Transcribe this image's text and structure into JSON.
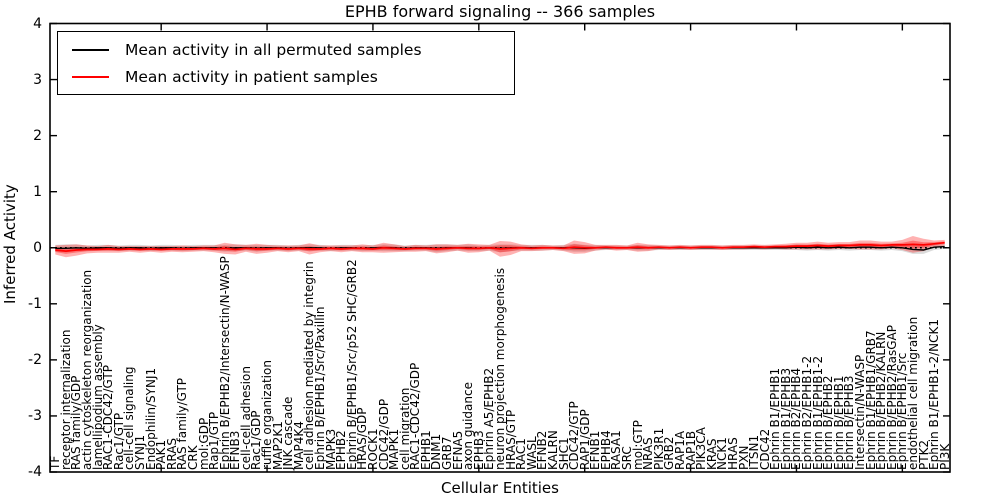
{
  "figure": {
    "title": "EPHB forward signaling -- 366 samples",
    "xlabel": "Cellular Entities",
    "ylabel": "Inferred Activity"
  },
  "legend": {
    "position": "upper left",
    "entries": [
      {
        "label": "Mean activity in all permuted samples",
        "color": "#000000"
      },
      {
        "label": "Mean activity in patient samples",
        "color": "#ff0000"
      }
    ]
  },
  "chart_data": {
    "type": "line",
    "title": "EPHB forward signaling -- 366 samples",
    "xlabel": "Cellular Entities",
    "ylabel": "Inferred Activity",
    "ylim": [
      -4,
      4
    ],
    "yticks": [
      -4,
      -3,
      -2,
      -1,
      0,
      1,
      2,
      3,
      4
    ],
    "ytick_labels": [
      "-4",
      "-3",
      "-2",
      "-1",
      "0",
      "1",
      "2",
      "3",
      "4"
    ],
    "grid": false,
    "legend_position": "upper left",
    "zero_line": {
      "y": 0,
      "style": "dotted",
      "color": "#000000"
    },
    "categories": [
      "TF",
      "receptor internalization",
      "RAS family/GDP",
      "actin cytoskeleton reorganization",
      "lamellipodium assembly",
      "RAC1-CDC42/GTP",
      "Rac1/GTP",
      "cell-cell signaling",
      "SYNJ1",
      "Endophilin/SYNJ1",
      "PAK1",
      "RRAS",
      "RAS family/GTP",
      "CRK",
      "mol:GDP",
      "Rap1/GTP",
      "Ephrin B/EPHB2/Intersectin/N-WASP",
      "EFNB3",
      "cell-cell adhesion",
      "Rac1/GDP",
      "ruffle organization",
      "MAP2K1",
      "JNK cascade",
      "MAP4K4",
      "cell adhesion mediated by integrin",
      "Ephrin B/EPHB1/Src/Paxillin",
      "MAPK3",
      "EPHB2",
      "Ephrin B/EPHB1/Src/p52 SHC/GRB2",
      "HRAS/GDP",
      "ROCK1",
      "CDC42/GDP",
      "MAPK1",
      "cell migration",
      "RAC1-CDC42/GDP",
      "EPHB1",
      "DNM1",
      "GRB7",
      "EFNA5",
      "axon guidance",
      "EPHB3",
      "Ephrin A5/EPHB2",
      "neuron projection morphogenesis",
      "HRAS/GTP",
      "RAC1",
      "WASL",
      "EFNB2",
      "KALRN",
      "SHC1",
      "CDC42/GTP",
      "RAP1/GDP",
      "EFNB1",
      "EPHB4",
      "RASA1",
      "SRC",
      "mol:GTP",
      "NRAS",
      "PIK3R1",
      "GRB2",
      "RAP1A",
      "RAP1B",
      "PIK3CA",
      "KRAS",
      "NCK1",
      "HRAS",
      "PXN",
      "ITSN1",
      "CDC42",
      "Ephrin B1/EPHB1",
      "Ephrin B1/EPHB3",
      "Ephrin B2/EPHB4",
      "Ephrin B2/EPHB1-2",
      "Ephrin B1/EPHB1-2",
      "Ephrin B/EPHB2",
      "Ephrin B/EPHB1",
      "Ephrin B/EPHB3",
      "Intersectin/N-WASP",
      "Ephrin B1/EPHB1/GRB7",
      "Ephrin B/EPHB2/KALRN",
      "Ephrin B/EPHB2/RasGAP",
      "Ephrin B/EPHB1/Src",
      "endothelial cell migration",
      "PTK2",
      "Ephrin B1/EPHB1-2/NCK1",
      "PI3K"
    ],
    "series": [
      {
        "name": "Mean activity in all permuted samples",
        "color": "#000000",
        "band_color": "#999999",
        "band_opacity": 0.35,
        "values": [
          -0.01,
          -0.01,
          0,
          -0.01,
          0,
          0,
          -0.01,
          0,
          0,
          -0.01,
          0,
          0,
          -0.01,
          0,
          0,
          0,
          -0.01,
          0,
          0,
          -0.01,
          0,
          0,
          -0.01,
          0,
          0,
          0,
          -0.01,
          0,
          0,
          -0.01,
          0,
          0,
          0,
          -0.01,
          0,
          0,
          -0.01,
          0,
          0,
          0,
          -0.01,
          0,
          -0.01,
          0,
          0,
          0,
          0,
          0,
          0,
          0,
          -0.01,
          0,
          0,
          0,
          0,
          0,
          0,
          0,
          0,
          0,
          0,
          0,
          0,
          0,
          0,
          0,
          0,
          0,
          0,
          0,
          0.01,
          0,
          0.01,
          0,
          0.01,
          0,
          0.01,
          0.01,
          0,
          0.01,
          0,
          -0.03,
          -0.04,
          0.01,
          0.02
        ],
        "band_half": [
          0.06,
          0.07,
          0.06,
          0.05,
          0.05,
          0.05,
          0.05,
          0.05,
          0.05,
          0.05,
          0.05,
          0.05,
          0.05,
          0.05,
          0.05,
          0.05,
          0.06,
          0.06,
          0.05,
          0.06,
          0.05,
          0.05,
          0.05,
          0.05,
          0.06,
          0.05,
          0.05,
          0.05,
          0.05,
          0.05,
          0.05,
          0.06,
          0.06,
          0.05,
          0.05,
          0.05,
          0.07,
          0.06,
          0.05,
          0.06,
          0.05,
          0.05,
          0.07,
          0.06,
          0.05,
          0.05,
          0.05,
          0.04,
          0.05,
          0.07,
          0.06,
          0.05,
          0.04,
          0.04,
          0.04,
          0.05,
          0.05,
          0.04,
          0.04,
          0.04,
          0.04,
          0.04,
          0.04,
          0.04,
          0.04,
          0.04,
          0.04,
          0.04,
          0.04,
          0.04,
          0.05,
          0.05,
          0.05,
          0.05,
          0.05,
          0.05,
          0.05,
          0.05,
          0.05,
          0.05,
          0.06,
          0.08,
          0.07,
          0.05,
          0.04
        ]
      },
      {
        "name": "Mean activity in patient samples",
        "color": "#ff0000",
        "band_color": "#ff0000",
        "band_opacity": 0.3,
        "values": [
          -0.04,
          -0.06,
          -0.04,
          -0.03,
          -0.03,
          -0.02,
          -0.03,
          -0.02,
          -0.03,
          -0.02,
          -0.03,
          -0.02,
          -0.02,
          -0.02,
          -0.01,
          -0.02,
          -0.01,
          -0.03,
          -0.01,
          -0.02,
          -0.02,
          -0.01,
          -0.02,
          -0.01,
          -0.02,
          -0.02,
          -0.01,
          -0.02,
          -0.01,
          -0.01,
          -0.02,
          0,
          -0.01,
          -0.02,
          -0.01,
          -0.01,
          -0.02,
          -0.01,
          0,
          -0.01,
          -0.01,
          0,
          -0.02,
          -0.01,
          0,
          -0.01,
          0,
          0,
          -0.01,
          0.01,
          0,
          0,
          0.01,
          0,
          0,
          0.01,
          0,
          0.01,
          0,
          0.01,
          0,
          0.01,
          0.01,
          0,
          0.01,
          0.01,
          0.02,
          0.01,
          0.02,
          0.02,
          0.03,
          0.03,
          0.04,
          0.03,
          0.04,
          0.04,
          0.05,
          0.05,
          0.04,
          0.05,
          0.05,
          0.06,
          0.05,
          0.07,
          0.09
        ],
        "band_half": [
          0.08,
          0.11,
          0.1,
          0.07,
          0.06,
          0.07,
          0.06,
          0.05,
          0.06,
          0.05,
          0.06,
          0.05,
          0.06,
          0.05,
          0.05,
          0.06,
          0.1,
          0.09,
          0.06,
          0.09,
          0.07,
          0.05,
          0.06,
          0.05,
          0.1,
          0.06,
          0.05,
          0.06,
          0.05,
          0.07,
          0.06,
          0.09,
          0.07,
          0.05,
          0.06,
          0.05,
          0.08,
          0.07,
          0.05,
          0.08,
          0.07,
          0.05,
          0.14,
          0.12,
          0.06,
          0.05,
          0.05,
          0.04,
          0.05,
          0.12,
          0.1,
          0.05,
          0.04,
          0.05,
          0.04,
          0.08,
          0.06,
          0.04,
          0.04,
          0.04,
          0.04,
          0.04,
          0.04,
          0.04,
          0.04,
          0.04,
          0.04,
          0.04,
          0.04,
          0.05,
          0.06,
          0.06,
          0.07,
          0.06,
          0.06,
          0.06,
          0.08,
          0.08,
          0.07,
          0.06,
          0.09,
          0.15,
          0.11,
          0.06,
          0.05
        ]
      }
    ]
  }
}
